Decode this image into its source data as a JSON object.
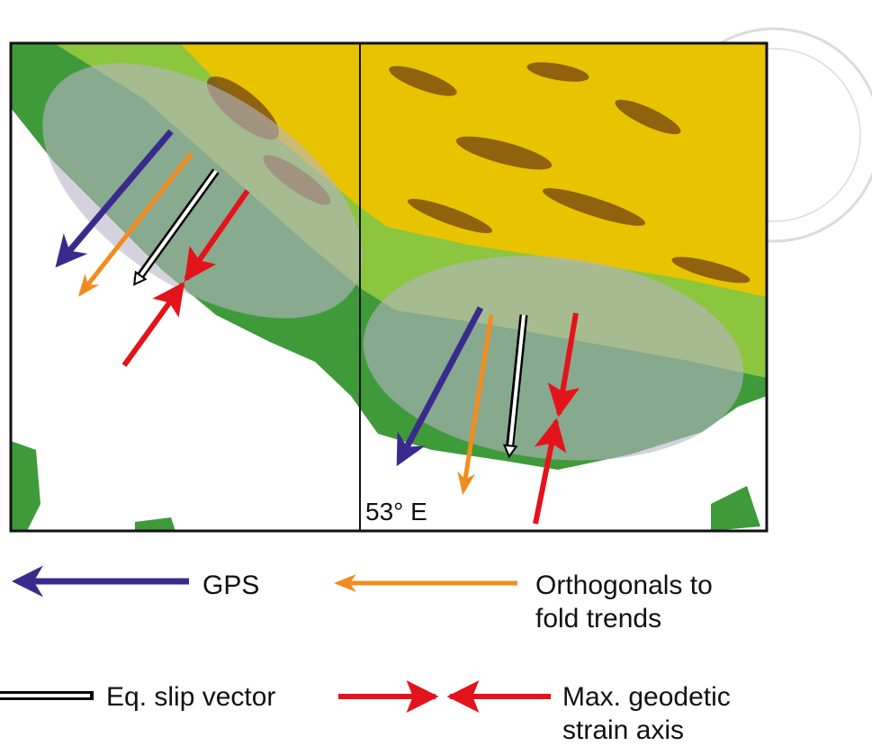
{
  "map": {
    "longitude_label": "53° E"
  },
  "legend": {
    "items": [
      {
        "label_lines": [
          "GPS"
        ]
      },
      {
        "label_lines": [
          "Orthogonals to",
          "fold trends"
        ]
      },
      {
        "label_lines": [
          "Eq. slip vector"
        ]
      },
      {
        "label_lines": [
          "Max. geodetic",
          "strain axis"
        ]
      }
    ]
  }
}
